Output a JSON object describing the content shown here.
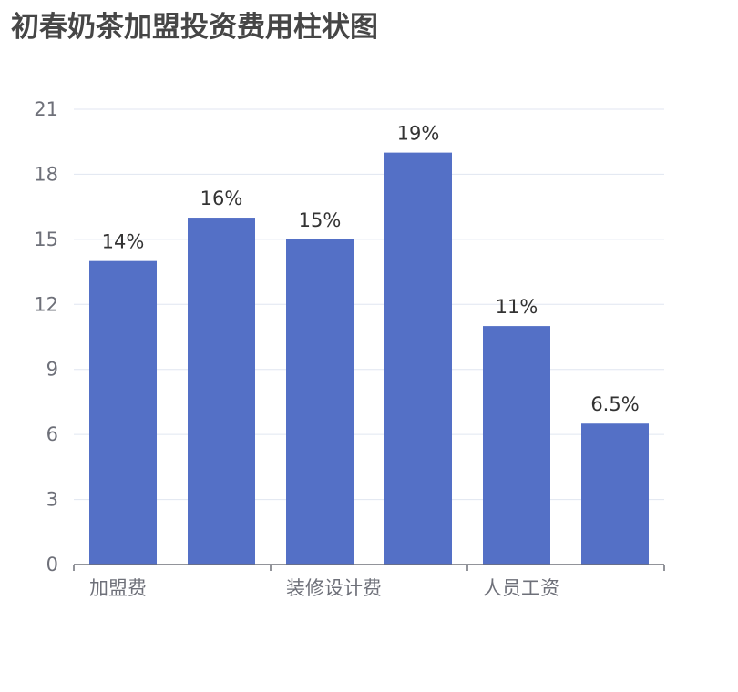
{
  "chart_data": {
    "type": "bar",
    "title": "初春奶茶加盟投资费用柱状图",
    "categories": [
      "加盟费",
      "",
      "装修设计费",
      "",
      "人员工资",
      ""
    ],
    "values": [
      14,
      16,
      15,
      19,
      11,
      6.5
    ],
    "data_labels": [
      "14%",
      "16%",
      "15%",
      "19%",
      "11%",
      "6.5%"
    ],
    "ylim": [
      0,
      21
    ],
    "yticks": [
      0,
      3,
      6,
      9,
      12,
      15,
      18,
      21
    ],
    "grid": true,
    "legend": "none",
    "colors": {
      "bar": "#5470c6",
      "grid": "#e0e6f1",
      "axis": "#6e7079",
      "title": "#464646",
      "label": "#333333"
    }
  }
}
